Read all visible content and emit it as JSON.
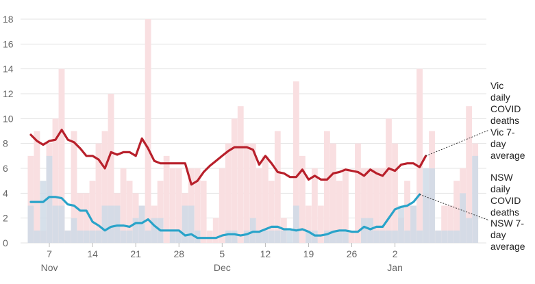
{
  "chart_data": {
    "type": "bar",
    "x_tick_labels": [
      "7",
      "14",
      "21",
      "28",
      "5",
      "12",
      "19",
      "26",
      "2"
    ],
    "x_month_labels": [
      "Nov",
      "Dec",
      "Jan"
    ],
    "y_ticks": [
      0,
      2,
      4,
      6,
      8,
      10,
      12,
      14,
      16,
      18
    ],
    "ylim": [
      0,
      18
    ],
    "grid": true,
    "legend_placement": "right, inline labels at line ends",
    "colors": {
      "vic_bars": "#f9dfe1",
      "nsw_bars": "#cfdbe6",
      "vic_line": "#b8202b",
      "nsw_line": "#29a3c9",
      "grid": "#e3e3e3",
      "axis_text": "#666666"
    },
    "series": [
      {
        "name": "Vic daily COVID deaths",
        "kind": "bar",
        "color": "#f9dfe1",
        "values": [
          7,
          9,
          1,
          8,
          10,
          14,
          1,
          9,
          4,
          4,
          5,
          8,
          9,
          12,
          4,
          6,
          5,
          4,
          3,
          18,
          3,
          5,
          7,
          6,
          6,
          4,
          6,
          6,
          5,
          1,
          2,
          6,
          8,
          10,
          11,
          8,
          8,
          6,
          7,
          5,
          9,
          2,
          0,
          13,
          7,
          3,
          6,
          3,
          9,
          8,
          5,
          6,
          1,
          8,
          6,
          6,
          6,
          6,
          10,
          8,
          2,
          5,
          3,
          14,
          4,
          9,
          1,
          3,
          3,
          5,
          6,
          11,
          8
        ]
      },
      {
        "name": "NSW daily COVID deaths",
        "kind": "bar",
        "color": "#cfdbe6",
        "values": [
          3,
          1,
          5,
          7,
          3,
          3,
          1,
          2,
          1,
          1,
          1,
          1,
          3,
          3,
          3,
          1,
          1,
          2,
          3,
          1,
          2,
          2,
          0,
          1,
          1,
          3,
          3,
          1,
          0,
          0,
          0,
          0,
          1,
          1,
          0,
          1,
          2,
          1,
          1,
          1,
          1,
          1,
          1,
          3,
          0,
          1,
          1,
          0,
          1,
          1,
          1,
          1,
          0,
          0,
          2,
          2,
          1,
          1,
          1,
          1,
          3,
          1,
          3,
          1,
          6,
          6,
          1,
          1,
          1,
          1,
          4,
          2,
          7
        ]
      },
      {
        "name": "Vic 7-day average",
        "kind": "line",
        "color": "#b8202b",
        "values": [
          8.7,
          8.2,
          7.9,
          8.2,
          8.3,
          9.1,
          8.3,
          8.1,
          7.6,
          7.0,
          7.0,
          6.7,
          6.0,
          7.3,
          7.1,
          7.3,
          7.3,
          7.0,
          8.4,
          7.6,
          6.6,
          6.4,
          6.4,
          6.4,
          6.4,
          6.4,
          4.7,
          5.0,
          5.7,
          6.2,
          6.6,
          7.0,
          7.4,
          7.7,
          7.7,
          7.7,
          7.5,
          6.3,
          7.0,
          6.4,
          5.7,
          5.6,
          5.3,
          5.3,
          5.9,
          5.1,
          5.4,
          5.1,
          5.1,
          5.6,
          5.7,
          5.9,
          5.8,
          5.7,
          5.4,
          5.9,
          5.6,
          5.4,
          6.0,
          5.8,
          6.3,
          6.4,
          6.4,
          6.1,
          7.0
        ]
      },
      {
        "name": "NSW 7-day average",
        "kind": "line",
        "color": "#29a3c9",
        "values": [
          3.3,
          3.3,
          3.3,
          3.7,
          3.7,
          3.6,
          3.1,
          3.0,
          2.6,
          2.6,
          1.7,
          1.4,
          1.0,
          1.3,
          1.4,
          1.4,
          1.3,
          1.6,
          1.6,
          1.9,
          1.4,
          1.0,
          1.0,
          1.0,
          1.0,
          0.6,
          0.7,
          0.4,
          0.4,
          0.4,
          0.4,
          0.6,
          0.7,
          0.7,
          0.6,
          0.7,
          0.9,
          0.9,
          1.1,
          1.3,
          1.3,
          1.1,
          1.1,
          1.0,
          1.1,
          0.9,
          0.6,
          0.6,
          0.7,
          0.9,
          1.0,
          1.0,
          0.9,
          0.9,
          1.3,
          1.1,
          1.3,
          1.3,
          2.0,
          2.7,
          2.9,
          3.0,
          3.3,
          3.9
        ]
      }
    ],
    "legend": {
      "vic_daily": [
        "Vic",
        "daily",
        "COVID",
        "deaths"
      ],
      "vic_avg": [
        "Vic 7-",
        "day",
        "average"
      ],
      "nsw_daily": [
        "NSW",
        "daily",
        "COVID",
        "deaths"
      ],
      "nsw_avg": [
        "NSW 7-",
        "day",
        "average"
      ]
    }
  }
}
